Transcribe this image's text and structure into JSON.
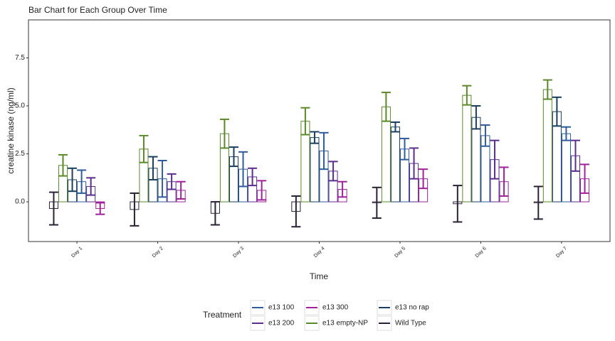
{
  "chart_data": {
    "type": "bar",
    "title": "Bar Chart for Each Group Over Time",
    "x_label": "Time",
    "y_label": "creatine kinase (ng/ml)",
    "legend_title": "Treatment",
    "categories": [
      "Day 1",
      "Day 2",
      "Day 3",
      "Day 4",
      "Day 5",
      "Day 6",
      "Day 7"
    ],
    "series": [
      {
        "name": "Wild Type",
        "color": "#2b2135",
        "values": [
          -0.35,
          -0.4,
          -0.6,
          -0.5,
          -0.05,
          -0.1,
          -0.05
        ],
        "errors": [
          0.85,
          0.85,
          0.6,
          0.8,
          0.8,
          0.95,
          0.85
        ]
      },
      {
        "name": "e13 empty-NP",
        "color": "#5a8a28",
        "values": [
          1.9,
          2.75,
          3.55,
          4.2,
          4.95,
          5.55,
          5.85
        ],
        "errors": [
          0.55,
          0.7,
          0.75,
          0.7,
          0.75,
          0.5,
          0.5
        ]
      },
      {
        "name": "e13 no rap",
        "color": "#1b3f5e",
        "values": [
          1.15,
          1.75,
          2.35,
          3.35,
          3.9,
          4.4,
          4.7
        ],
        "errors": [
          0.6,
          0.6,
          0.5,
          0.3,
          0.25,
          0.6,
          0.75
        ]
      },
      {
        "name": "e13 100",
        "color": "#2e5d9c",
        "values": [
          1.05,
          1.2,
          1.7,
          2.65,
          2.75,
          3.45,
          3.55
        ],
        "errors": [
          0.6,
          0.95,
          0.9,
          0.95,
          0.55,
          0.55,
          0.35
        ]
      },
      {
        "name": "e13 200",
        "color": "#5b2d8e",
        "values": [
          0.8,
          1.05,
          1.3,
          1.6,
          2.0,
          2.2,
          2.4
        ],
        "errors": [
          0.45,
          0.4,
          0.45,
          0.5,
          0.8,
          1.0,
          0.8
        ]
      },
      {
        "name": "e13 300",
        "color": "#a0229b",
        "values": [
          -0.35,
          0.6,
          0.6,
          0.65,
          1.2,
          1.05,
          1.2
        ],
        "errors": [
          0.3,
          0.45,
          0.5,
          0.4,
          0.5,
          0.75,
          0.75
        ]
      }
    ],
    "ylim": [
      -2.07,
      9.48
    ],
    "yticks": [
      {
        "value": 0,
        "label": "0.0"
      },
      2.5,
      {
        "value": 5,
        "label": "5.0"
      },
      7.5
    ],
    "grid": false
  }
}
